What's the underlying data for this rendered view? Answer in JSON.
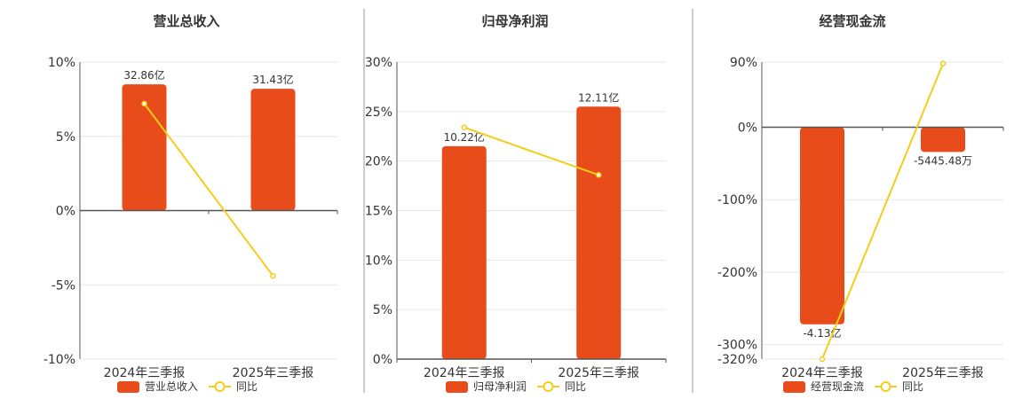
{
  "colors": {
    "bar": "#E84C1B",
    "line": "#F2CE1A",
    "grid": "#E6E6E6",
    "axis": "#555555",
    "divider": "#999999"
  },
  "chart_data": [
    {
      "type": "bar",
      "title": "营业总收入",
      "categories": [
        "2024年三季报",
        "2025年三季报"
      ],
      "bar_values": [
        8.5,
        8.2
      ],
      "bar_labels": [
        "32.86亿",
        "31.43亿"
      ],
      "line_values": [
        7.2,
        -4.4
      ],
      "ylim": [
        -10,
        10
      ],
      "yticks": [
        10,
        5,
        0,
        -5,
        -10
      ],
      "ytick_labels": [
        "10%",
        "5%",
        "0%",
        "-5%",
        "-10%"
      ],
      "legend": {
        "bar": "营业总收入",
        "line": "同比"
      }
    },
    {
      "type": "bar",
      "title": "归母净利润",
      "categories": [
        "2024年三季报",
        "2025年三季报"
      ],
      "bar_values": [
        21.5,
        25.5
      ],
      "bar_labels": [
        "10.22亿",
        "12.11亿"
      ],
      "line_values": [
        23.4,
        18.6
      ],
      "ylim": [
        0,
        30
      ],
      "yticks": [
        30,
        25,
        20,
        15,
        10,
        5,
        0
      ],
      "ytick_labels": [
        "30%",
        "25%",
        "20%",
        "15%",
        "10%",
        "5%",
        "0%"
      ],
      "legend": {
        "bar": "归母净利润",
        "line": "同比"
      }
    },
    {
      "type": "bar",
      "title": "经营现金流",
      "categories": [
        "2024年三季报",
        "2025年三季报"
      ],
      "bar_values": [
        -272,
        -34
      ],
      "bar_labels": [
        "-4.13亿",
        "-5445.48万"
      ],
      "line_values": [
        -320,
        88
      ],
      "ylim": [
        -320,
        90
      ],
      "yticks": [
        90,
        0,
        -100,
        -200,
        -300,
        -320
      ],
      "ytick_labels": [
        "90%",
        "0%",
        "-100%",
        "-200%",
        "-300%",
        "-320%"
      ],
      "legend": {
        "bar": "经营现金流",
        "line": "同比"
      }
    }
  ]
}
